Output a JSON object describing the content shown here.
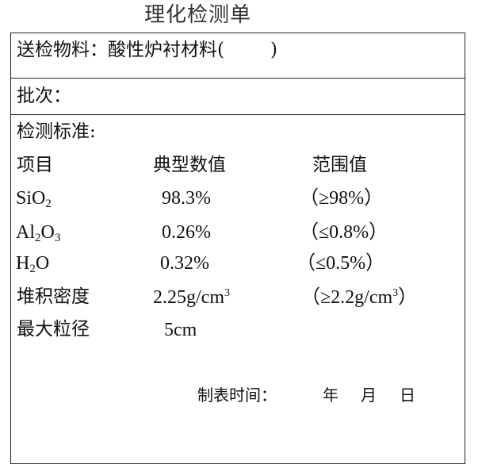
{
  "title": "理化检测单",
  "material": {
    "label": "送检物料：",
    "value": "酸性炉衬材料(",
    "close": ")"
  },
  "batch": {
    "label": "批次："
  },
  "standard": {
    "label": "检测标准:"
  },
  "headers": {
    "item": "项目",
    "typical": "典型数值",
    "range": "范围值"
  },
  "rows": [
    {
      "name": "SiO",
      "name_sub": "2",
      "typical": "98.3%",
      "range": "（≥98%）"
    },
    {
      "name1": "Al",
      "sub1": "2",
      "name2": "O",
      "sub2": "3",
      "typical": "0.26%",
      "range": "（≤0.8%）"
    },
    {
      "name1": "H",
      "sub1": "2",
      "name2": "O",
      "typical": "0.32%",
      "range": "（≤0.5%）"
    },
    {
      "name": "堆积密度",
      "typical": "2.25g/cm",
      "typical_sup": "3",
      "range_open": "（≥2.2g/cm",
      "range_sup": "3",
      "range_close": "）"
    },
    {
      "name": "最大粒径",
      "typical": "5cm"
    }
  ],
  "footer": {
    "label": "制表时间：",
    "year": "年",
    "month": "月",
    "day": "日"
  }
}
